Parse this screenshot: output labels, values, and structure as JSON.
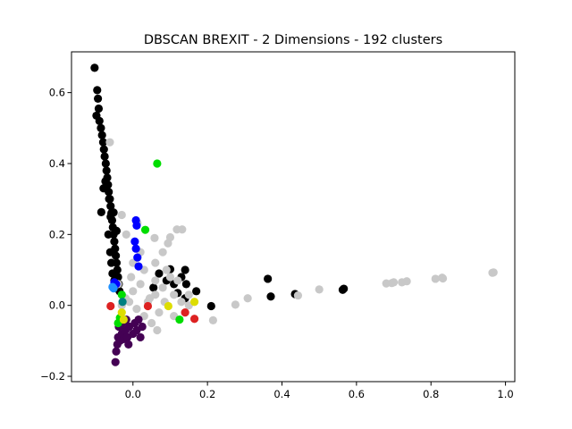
{
  "chart_data": {
    "type": "scatter",
    "title": "DBSCAN BREXIT - 2 Dimensions - 192 clusters",
    "xlabel": "",
    "ylabel": "",
    "xlim": [
      -0.165,
      1.025
    ],
    "ylim": [
      -0.215,
      0.715
    ],
    "xticks": [
      0.0,
      0.2,
      0.4,
      0.6,
      0.8,
      1.0
    ],
    "xtick_labels": [
      "0.0",
      "0.2",
      "0.4",
      "0.6",
      "0.8",
      "1.0"
    ],
    "yticks": [
      -0.2,
      0.0,
      0.2,
      0.4,
      0.6
    ],
    "ytick_labels": [
      "−0.2",
      "0.0",
      "0.2",
      "0.4",
      "0.6"
    ],
    "grid": false,
    "legend": false,
    "series": [
      {
        "color": "#000000",
        "points": [
          [
            -0.103,
            0.67
          ],
          [
            -0.096,
            0.607
          ],
          [
            -0.094,
            0.583
          ],
          [
            -0.098,
            0.535
          ],
          [
            -0.092,
            0.555
          ],
          [
            -0.09,
            0.52
          ],
          [
            -0.086,
            0.5
          ],
          [
            -0.083,
            0.48
          ],
          [
            -0.08,
            0.46
          ],
          [
            -0.078,
            0.44
          ],
          [
            -0.076,
            0.42
          ],
          [
            -0.073,
            0.4
          ],
          [
            -0.071,
            0.38
          ],
          [
            -0.069,
            0.36
          ],
          [
            -0.067,
            0.34
          ],
          [
            -0.065,
            0.32
          ],
          [
            -0.062,
            0.3
          ],
          [
            -0.06,
            0.28
          ],
          [
            -0.058,
            0.26
          ],
          [
            -0.056,
            0.24
          ],
          [
            -0.054,
            0.22
          ],
          [
            -0.052,
            0.2
          ],
          [
            -0.05,
            0.18
          ],
          [
            -0.048,
            0.16
          ],
          [
            -0.046,
            0.14
          ],
          [
            -0.044,
            0.12
          ],
          [
            -0.042,
            0.1
          ],
          [
            -0.04,
            0.08
          ],
          [
            -0.038,
            0.06
          ],
          [
            -0.036,
            0.04
          ],
          [
            -0.085,
            0.263
          ],
          [
            -0.079,
            0.33
          ],
          [
            -0.074,
            0.35
          ],
          [
            -0.064,
            0.3
          ],
          [
            -0.06,
            0.25
          ],
          [
            -0.066,
            0.2
          ],
          [
            -0.061,
            0.15
          ],
          [
            -0.058,
            0.12
          ],
          [
            -0.052,
            0.262
          ],
          [
            -0.044,
            0.21
          ],
          [
            -0.055,
            0.09
          ],
          [
            -0.05,
            0.07
          ],
          [
            0.1,
            0.102
          ],
          [
            0.14,
            0.1
          ],
          [
            0.13,
            0.08
          ],
          [
            0.143,
            0.06
          ],
          [
            0.12,
            0.035
          ],
          [
            0.17,
            0.04
          ],
          [
            0.14,
            0.02
          ],
          [
            0.21,
            -0.002
          ],
          [
            0.362,
            0.075
          ],
          [
            0.37,
            0.025
          ],
          [
            0.435,
            0.032
          ],
          [
            0.566,
            0.047
          ],
          [
            0.563,
            0.044
          ],
          [
            0.11,
            0.06
          ],
          [
            0.09,
            0.07
          ],
          [
            0.07,
            0.09
          ],
          [
            0.055,
            0.05
          ]
        ]
      },
      {
        "color": "#c8c8c8",
        "points": [
          [
            -0.062,
            0.46
          ],
          [
            -0.03,
            0.255
          ],
          [
            -0.018,
            0.2
          ],
          [
            0.012,
            0.232
          ],
          [
            0.058,
            0.19
          ],
          [
            0.1,
            0.192
          ],
          [
            0.118,
            0.214
          ],
          [
            0.132,
            0.214
          ],
          [
            0.094,
            0.175
          ],
          [
            0.08,
            0.15
          ],
          [
            0.06,
            0.12
          ],
          [
            0.03,
            0.1
          ],
          [
            0.02,
            0.06
          ],
          [
            0.0,
            0.04
          ],
          [
            -0.02,
            0.02
          ],
          [
            -0.03,
            0.0
          ],
          [
            0.01,
            -0.01
          ],
          [
            0.04,
            0.01
          ],
          [
            0.06,
            0.03
          ],
          [
            0.08,
            0.05
          ],
          [
            0.1,
            0.08
          ],
          [
            0.12,
            0.07
          ],
          [
            0.11,
            0.03
          ],
          [
            0.13,
            0.01
          ],
          [
            0.15,
            0.03
          ],
          [
            0.07,
            -0.02
          ],
          [
            0.05,
            -0.05
          ],
          [
            0.03,
            -0.03
          ],
          [
            -0.01,
            0.01
          ],
          [
            -0.04,
            0.06
          ],
          [
            0.09,
            0.1
          ],
          [
            0.06,
            0.07
          ],
          [
            0.045,
            0.02
          ],
          [
            0.085,
            0.01
          ],
          [
            0.15,
            0.0
          ],
          [
            0.215,
            -0.042
          ],
          [
            0.275,
            0.002
          ],
          [
            0.308,
            0.02
          ],
          [
            0.443,
            0.028
          ],
          [
            0.5,
            0.045
          ],
          [
            0.68,
            0.062
          ],
          [
            0.695,
            0.063
          ],
          [
            0.7,
            0.065
          ],
          [
            0.722,
            0.065
          ],
          [
            0.735,
            0.068
          ],
          [
            0.812,
            0.075
          ],
          [
            0.83,
            0.078
          ],
          [
            0.832,
            0.076
          ],
          [
            0.965,
            0.092
          ],
          [
            0.968,
            0.093
          ],
          [
            0.0,
            0.12
          ],
          [
            0.02,
            0.15
          ],
          [
            -0.005,
            0.08
          ],
          [
            0.065,
            -0.07
          ],
          [
            0.11,
            -0.03
          ]
        ]
      },
      {
        "color": "#440154",
        "points": [
          [
            -0.047,
            -0.16
          ],
          [
            -0.045,
            -0.13
          ],
          [
            -0.042,
            -0.11
          ],
          [
            -0.04,
            -0.09
          ],
          [
            -0.035,
            -0.1
          ],
          [
            -0.03,
            -0.08
          ],
          [
            -0.025,
            -0.095
          ],
          [
            -0.02,
            -0.07
          ],
          [
            -0.015,
            -0.09
          ],
          [
            -0.01,
            -0.06
          ],
          [
            0.0,
            -0.08
          ],
          [
            0.01,
            -0.07
          ],
          [
            0.02,
            -0.09
          ],
          [
            -0.038,
            -0.06
          ],
          [
            -0.028,
            -0.05
          ],
          [
            -0.018,
            -0.04
          ],
          [
            0.005,
            -0.05
          ],
          [
            0.015,
            -0.04
          ],
          [
            0.025,
            -0.06
          ],
          [
            -0.012,
            -0.11
          ]
        ]
      },
      {
        "color": "#0000ff",
        "points": [
          [
            0.008,
            0.24
          ],
          [
            0.01,
            0.225
          ],
          [
            0.005,
            0.18
          ],
          [
            0.008,
            0.16
          ],
          [
            0.012,
            0.135
          ],
          [
            0.015,
            0.11
          ],
          [
            -0.05,
            0.065
          ],
          [
            -0.045,
            0.06
          ]
        ]
      },
      {
        "color": "#1e90ff",
        "points": [
          [
            -0.055,
            0.052
          ],
          [
            -0.052,
            0.048
          ]
        ]
      },
      {
        "color": "#00dd00",
        "points": [
          [
            0.065,
            0.4
          ],
          [
            0.033,
            0.213
          ],
          [
            0.125,
            -0.04
          ],
          [
            -0.04,
            -0.05
          ],
          [
            -0.035,
            -0.035
          ],
          [
            -0.03,
            0.03
          ]
        ]
      },
      {
        "color": "#dddd00",
        "points": [
          [
            0.165,
            0.01
          ],
          [
            0.095,
            -0.002
          ],
          [
            -0.03,
            -0.02
          ],
          [
            -0.025,
            -0.04
          ]
        ]
      },
      {
        "color": "#dd2222",
        "points": [
          [
            -0.06,
            -0.002
          ],
          [
            0.14,
            -0.02
          ],
          [
            0.165,
            -0.038
          ],
          [
            0.04,
            -0.002
          ]
        ]
      },
      {
        "color": "#008080",
        "points": [
          [
            -0.028,
            0.01
          ]
        ]
      }
    ]
  }
}
